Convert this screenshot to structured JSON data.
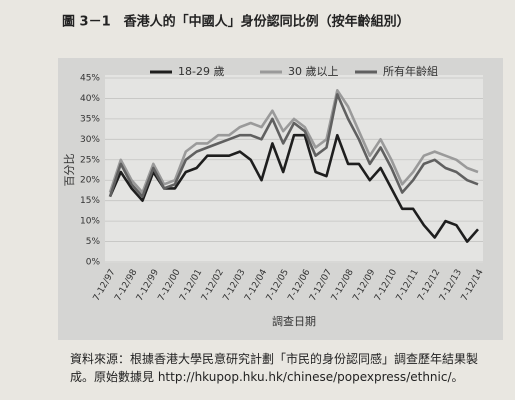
{
  "chart_data": {
    "type": "line",
    "title": "圖 3－1　香港人的「中國人」身份認同比例（按年齡組別）",
    "y_label": "百分比",
    "x_label": "調查日期",
    "categories": [
      "7-12/97",
      null,
      "7-12/98",
      null,
      "7-12/99",
      null,
      "7-12/00",
      null,
      "7-12/01",
      null,
      "7-12/02",
      null,
      "7-12/03",
      null,
      "7-12/04",
      null,
      "7-12/05",
      null,
      "7-12/06",
      null,
      "7-12/07",
      null,
      "7-12/08",
      null,
      "7-12/09",
      null,
      "7-12/10",
      null,
      "7-12/11",
      null,
      "7-12/12",
      null,
      "7-12/13",
      null,
      "7-12/14"
    ],
    "series": [
      {
        "name": "18-29 歲",
        "color": "#1e1e1e",
        "values": [
          16,
          22,
          18,
          15,
          22,
          18,
          18,
          22,
          23,
          26,
          26,
          26,
          27,
          25,
          20,
          29,
          22,
          31,
          31,
          22,
          21,
          31,
          24,
          24,
          20,
          23,
          18,
          13,
          13,
          9,
          6,
          10,
          9,
          5,
          8
        ]
      },
      {
        "name": "30 歲以上",
        "color": "#9a9a9a",
        "values": [
          17,
          25,
          20,
          17,
          24,
          19,
          20,
          27,
          29,
          29,
          31,
          31,
          33,
          34,
          33,
          37,
          32,
          35,
          33,
          28,
          30,
          42,
          38,
          32,
          26,
          30,
          25,
          19,
          22,
          26,
          27,
          26,
          25,
          23,
          22
        ]
      },
      {
        "name": "所有年齡組",
        "color": "#606060",
        "values": [
          16,
          24,
          19,
          16,
          23,
          18,
          19,
          25,
          27,
          28,
          29,
          30,
          31,
          31,
          30,
          35,
          29,
          34,
          32,
          26,
          28,
          41,
          35,
          30,
          24,
          28,
          23,
          17,
          20,
          24,
          25,
          23,
          22,
          20,
          19
        ]
      }
    ],
    "ylim": [
      0,
      45
    ],
    "yticks": [
      {
        "value": 0,
        "label": "0%"
      },
      {
        "value": 5,
        "label": "5%"
      },
      {
        "value": 10,
        "label": "10%"
      },
      {
        "value": 15,
        "label": "15%"
      },
      {
        "value": 20,
        "label": "20%"
      },
      {
        "value": 25,
        "label": "25%"
      },
      {
        "value": 30,
        "label": "30%"
      },
      {
        "value": 35,
        "label": "35%"
      },
      {
        "value": 40,
        "label": "40%"
      },
      {
        "value": 45,
        "label": "45%"
      }
    ],
    "grid": true,
    "legend": "top"
  },
  "source": "資料來源：根據香港大學民意研究計劃「市民的身份認同感」調查歷年結果製成。原始數據見 http://hkupop.hku.hk/chinese/popexpress/ethnic/。"
}
